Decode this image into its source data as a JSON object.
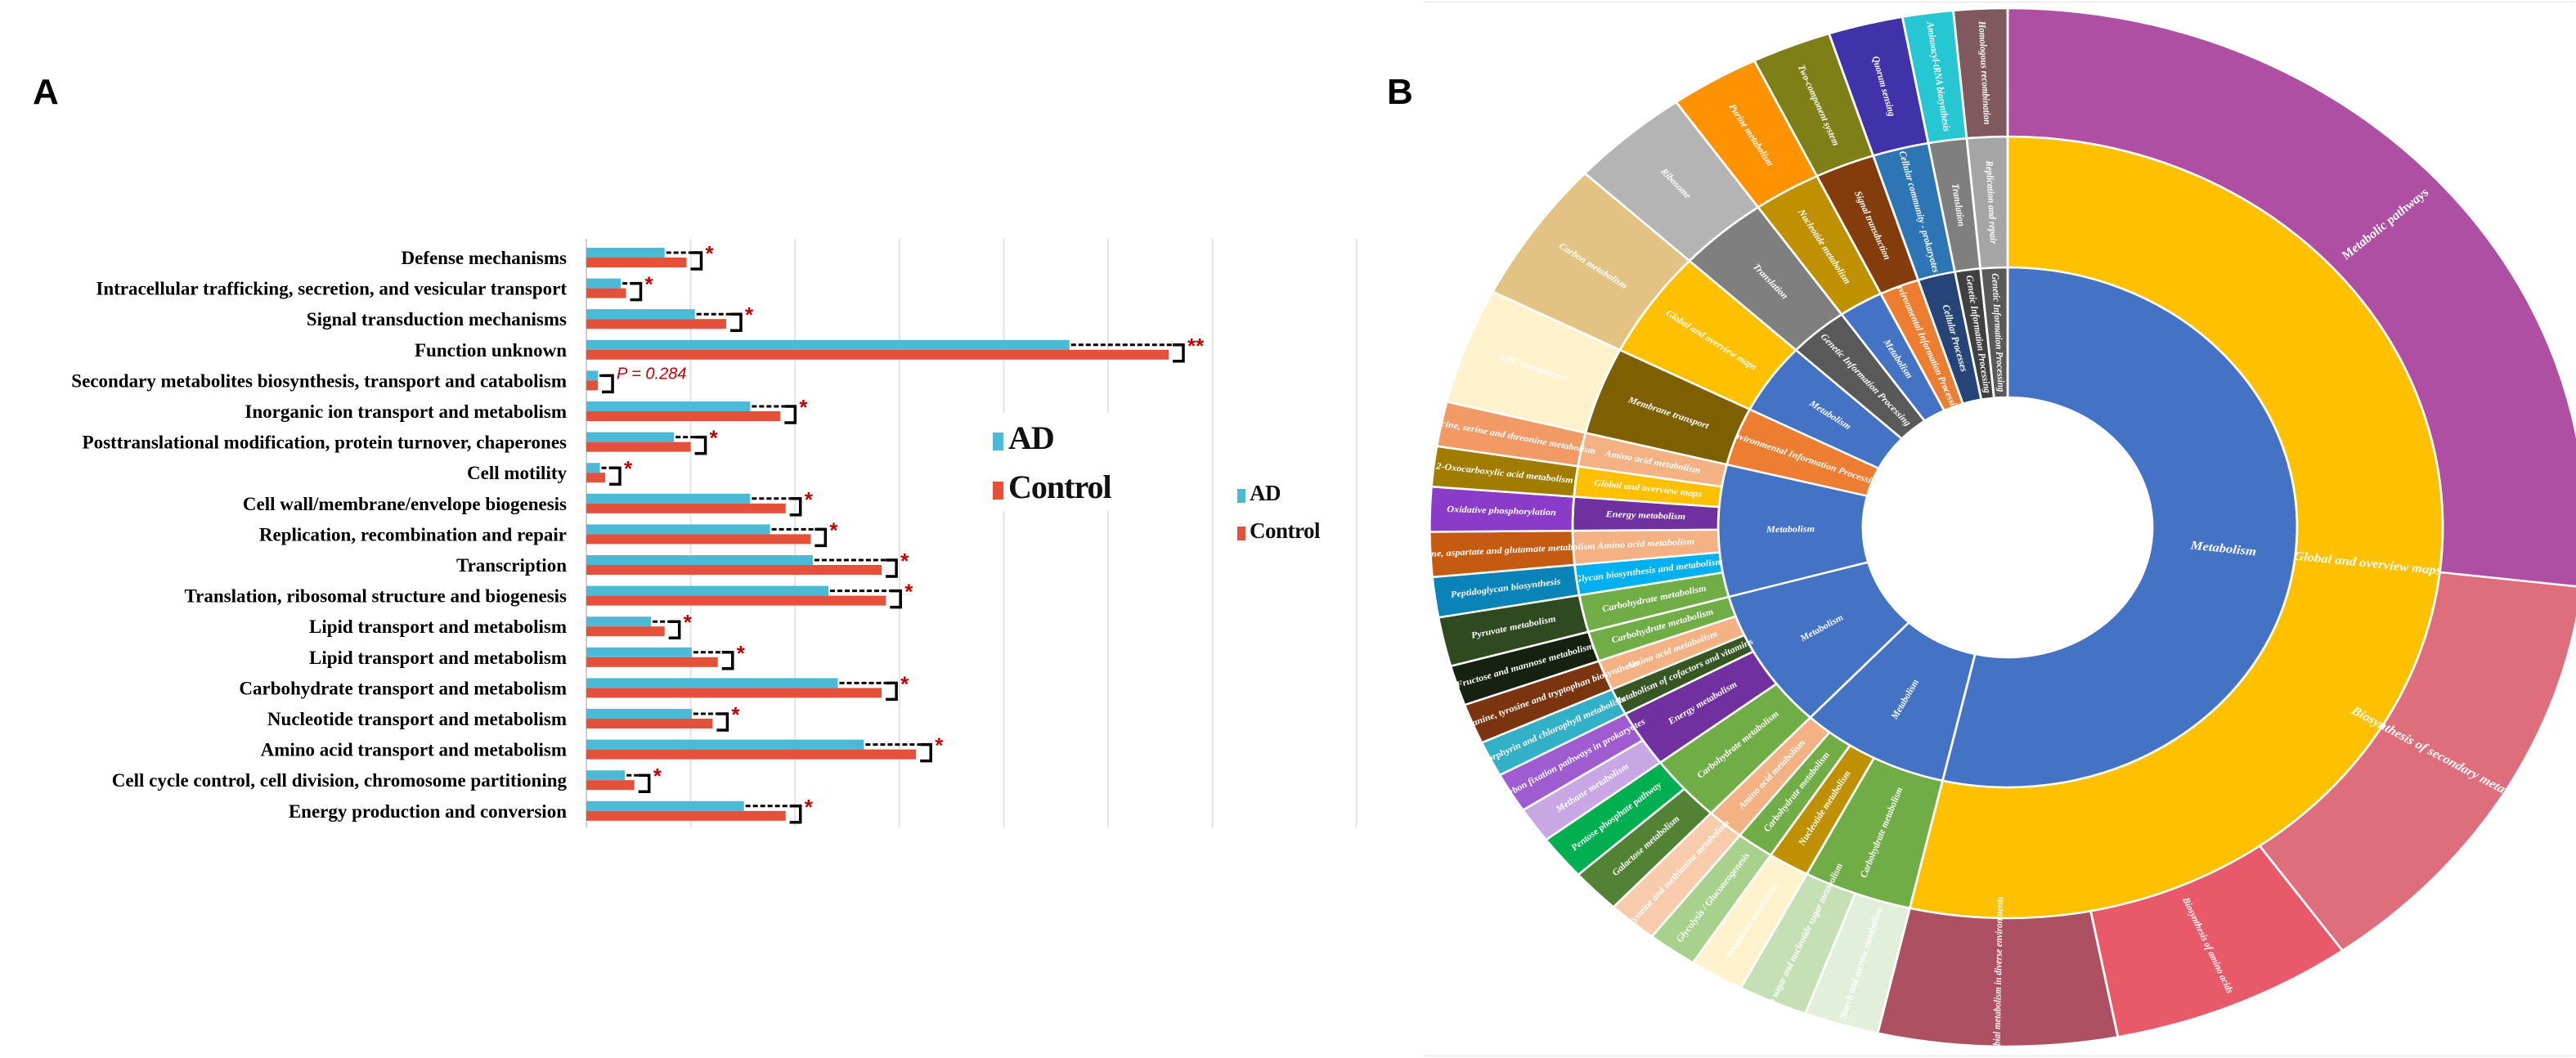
{
  "panels": {
    "a_label": "A",
    "b_label": "B"
  },
  "colors": {
    "ad": "#4bbad6",
    "control": "#e4503a",
    "significance": "#c00000",
    "grid": "#e3e3e3"
  },
  "legend_primary": {
    "ad": "AD",
    "control": "Control"
  },
  "legend_secondary": {
    "ad": "AD",
    "control": "Control"
  },
  "chart_data": [
    {
      "type": "bar",
      "orientation": "horizontal",
      "title": "",
      "xlabel": "",
      "ylabel": "",
      "xlim": [
        0,
        7.38
      ],
      "grid": true,
      "gridline_interval": 1,
      "tick_labels_shown": false,
      "legend": {
        "placement": "center-right",
        "entries": [
          "AD",
          "Control"
        ]
      },
      "categories": [
        "Defense mechanisms",
        "Intracellular trafficking, secretion, and vesicular transport",
        "Signal transduction mechanisms",
        "Function unknown",
        "Secondary metabolites biosynthesis, transport and catabolism",
        "Inorganic ion transport and metabolism",
        "Posttranslational modification, protein turnover, chaperones",
        "Cell motility",
        "Cell wall/membrane/envelope biogenesis",
        "Replication, recombination and repair",
        "Transcription",
        "Translation, ribosomal structure and biogenesis",
        "Lipid transport and metabolism",
        "Lipid transport and metabolism",
        "Carbohydrate transport and metabolism",
        "Nucleotide transport and metabolism",
        "Amino acid transport and metabolism",
        "Cell cycle control, cell division, chromosome partitioning",
        "Energy production and conversion"
      ],
      "series": [
        {
          "name": "AD",
          "values": [
            0.75,
            0.33,
            1.04,
            4.63,
            0.11,
            1.57,
            0.84,
            0.13,
            1.57,
            1.76,
            2.17,
            2.32,
            0.62,
            1.01,
            2.41,
            1.01,
            2.66,
            0.37,
            1.51
          ]
        },
        {
          "name": "Control",
          "values": [
            0.96,
            0.38,
            1.34,
            5.58,
            0.11,
            1.86,
            1.0,
            0.18,
            1.91,
            2.15,
            2.83,
            2.87,
            0.75,
            1.26,
            2.83,
            1.21,
            3.16,
            0.46,
            1.91
          ]
        }
      ],
      "significance": [
        "*",
        "*",
        "*",
        "**",
        "P = 0.284",
        "*",
        "*",
        "*",
        "*",
        "*",
        "*",
        "*",
        "*",
        "*",
        "*",
        "*",
        "*",
        "*",
        "*"
      ]
    },
    {
      "type": "sunburst",
      "title": "",
      "start": "top",
      "direction": "clockwise",
      "tree": [
        {
          "label": "Metabolism",
          "color": "#4472c4",
          "children": [
            {
              "label": "Global and overview maps",
              "color": "#ffc000",
              "children": [
                {
                  "label": "Metabolic pathways",
                  "color": "#ae4fa3",
                  "value": 96.6
                },
                {
                  "label": "Biosynthesis of secondary metabolites",
                  "color": "#de6e7c",
                  "value": 48
                },
                {
                  "label": "Biosynthesis of amino acids",
                  "color": "#e85a6a",
                  "value": 24.4
                },
                {
                  "label": "Microbial metabolism in diverse environments",
                  "color": "#ad5062",
                  "value": 24
                }
              ]
            }
          ]
        },
        {
          "label": "Metabolism",
          "color": "#4472c4",
          "children": [
            {
              "label": "Carbohydrate metabolism",
              "color": "#70ad47",
              "children": [
                {
                  "label": "Starch and sucrose metabolism",
                  "color": "#e2efda",
                  "value": 7.5
                },
                {
                  "label": "Amino sugar and nucleotide sugar metabolism",
                  "color": "#c5e0b4",
                  "value": 7
                }
              ]
            },
            {
              "label": "Nucleotide metabolism",
              "color": "#bf9000",
              "children": [
                {
                  "label": "Pyrimidine metabolism",
                  "color": "#fff2cc",
                  "value": 5.5
                }
              ]
            },
            {
              "label": "Carbohydrate metabolism",
              "color": "#70ad47",
              "children": [
                {
                  "label": "Glycolysis / Gluconeogenesis",
                  "color": "#a9d18e",
                  "value": 5
                }
              ]
            },
            {
              "label": "Amino acid metabolism",
              "color": "#f4b183",
              "children": [
                {
                  "label": "Cysteine and methionine metabolism",
                  "color": "#f8cbad",
                  "value": 5
                }
              ]
            }
          ]
        },
        {
          "label": "Metabolism",
          "color": "#4472c4",
          "children": [
            {
              "label": "Carbohydrate metabolism",
              "color": "#70ad47",
              "children": [
                {
                  "label": "Galactose metabolism",
                  "color": "#548235",
                  "value": 5
                },
                {
                  "label": "Pentose phosphate pathway",
                  "color": "#00b050",
                  "value": 5
                }
              ]
            },
            {
              "label": "Energy metabolism",
              "color": "#7030a0",
              "children": [
                {
                  "label": "Methane metabolism",
                  "color": "#c9a6e4",
                  "value": 4
                },
                {
                  "label": "Carbon fixation pathways in prokaryotes",
                  "color": "#9f5bd0",
                  "value": 4.5
                }
              ]
            },
            {
              "label": "Metabolism of cofactors and vitamins",
              "color": "#375623",
              "children": [
                {
                  "label": "Porphyrin and chlorophyll metabolism",
                  "color": "#31b0c8",
                  "value": 4
                }
              ]
            },
            {
              "label": "Amino acid metabolism",
              "color": "#f4b183",
              "children": [
                {
                  "label": "Phenylalanine, tyrosine and tryptophan biosynthesis",
                  "color": "#7a3410",
                  "value": 4.5
                }
              ]
            },
            {
              "label": "Carbohydrate metabolism",
              "color": "#70ad47",
              "children": [
                {
                  "label": "Fructose and mannose metabolism",
                  "color": "#172112",
                  "value": 4.5
                }
              ]
            }
          ]
        },
        {
          "label": "Metabolism",
          "color": "#4472c4",
          "children": [
            {
              "label": "Carbohydrate metabolism",
              "color": "#70ad47",
              "children": [
                {
                  "label": "Pyruvate metabolism",
                  "color": "#2f4a20",
                  "value": 5.5
                }
              ]
            },
            {
              "label": "Glycan biosynthesis and metabolism",
              "color": "#00b0f0",
              "children": [
                {
                  "label": "Peptidoglycan biosynthesis",
                  "color": "#0a83b8",
                  "value": 4.5
                }
              ]
            },
            {
              "label": "Amino acid metabolism",
              "color": "#f4b183",
              "children": [
                {
                  "label": "Alanine, aspartate and glutamate metabolism",
                  "color": "#c55a11",
                  "value": 5
                }
              ]
            },
            {
              "label": "Energy metabolism",
              "color": "#7030a0",
              "children": [
                {
                  "label": "Oxidative phosphorylation",
                  "color": "#8a3cc9",
                  "value": 5
                }
              ]
            },
            {
              "label": "Global and overview maps",
              "color": "#ffc000",
              "children": [
                {
                  "label": "2-Oxocarboxylic acid metabolism",
                  "color": "#a07c00",
                  "value": 4.5
                }
              ]
            },
            {
              "label": "Amino acid metabolism",
              "color": "#f4b183",
              "children": [
                {
                  "label": "Glycine, serine and threonine metabolism",
                  "color": "#f19a66",
                  "value": 5
                }
              ]
            }
          ]
        },
        {
          "label": "Environmental Information Processing",
          "color": "#ed7d31",
          "children": [
            {
              "label": "Membrane transport",
              "color": "#7f6000",
              "children": [
                {
                  "label": "ABC transporters",
                  "color": "#fff2cc",
                  "value": 13
                }
              ]
            }
          ]
        },
        {
          "label": "Metabolism",
          "color": "#4472c4",
          "children": [
            {
              "label": "Global and overview maps",
              "color": "#ffc000",
              "children": [
                {
                  "label": "Carbon metabolism",
                  "color": "#e2c384",
                  "value": 16
                }
              ]
            }
          ]
        },
        {
          "label": "Genetic Information Processing",
          "color": "#595959",
          "children": [
            {
              "label": "Translation",
              "color": "#7f7f7f",
              "children": [
                {
                  "label": "Ribosome",
                  "color": "#b4b4b4",
                  "value": 12
                }
              ]
            }
          ]
        },
        {
          "label": "Metabolism",
          "color": "#4472c4",
          "children": [
            {
              "label": "Nucleotide metabolism",
              "color": "#bf9000",
              "children": [
                {
                  "label": "Purine metabolism",
                  "color": "#ff9200",
                  "value": 9
                }
              ]
            }
          ]
        },
        {
          "label": "Environmental Information Processing",
          "color": "#ed7d31",
          "children": [
            {
              "label": "Signal transduction",
              "color": "#843c0c",
              "children": [
                {
                  "label": "Two-component system",
                  "color": "#7f7f17",
                  "value": 8
                }
              ]
            }
          ]
        },
        {
          "label": "Cellular Processes",
          "color": "#264478",
          "children": [
            {
              "label": "Cellular community - prokaryotes",
              "color": "#2e75b6",
              "children": [
                {
                  "label": "Quorum sensing",
                  "color": "#4032a8",
                  "value": 7.5
                }
              ]
            }
          ]
        },
        {
          "label": "Genetic Information Processing",
          "color": "#404040",
          "children": [
            {
              "label": "Translation",
              "color": "#7f7f7f",
              "children": [
                {
                  "label": "Aminoacyl-tRNA biosynthesis",
                  "color": "#26c6d3",
                  "value": 5.1
                }
              ]
            }
          ]
        },
        {
          "label": "Genetic Information Processing",
          "color": "#595959",
          "children": [
            {
              "label": "Replication and repair",
              "color": "#a5a5a5",
              "children": [
                {
                  "label": "Homologous recombination",
                  "color": "#7f595e",
                  "value": 5.4
                }
              ]
            }
          ]
        }
      ]
    }
  ]
}
